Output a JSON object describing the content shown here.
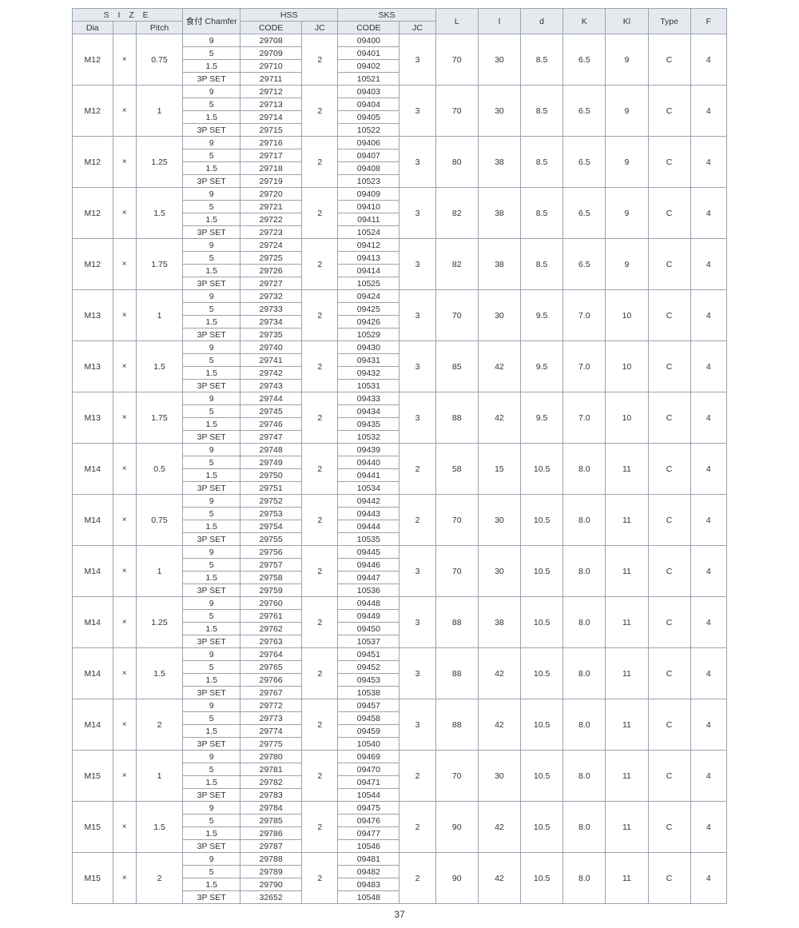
{
  "headers": {
    "size": "S I Z E",
    "dia": "Dia",
    "pitch": "Pitch",
    "chamfer": "食付 Chamfer",
    "hss": "HSS",
    "sks": "SKS",
    "code": "CODE",
    "jc": "JC",
    "L": "L",
    "l": "l",
    "d": "d",
    "K": "K",
    "Kl": "Kl",
    "Type": "Type",
    "F": "F"
  },
  "multiply": "×",
  "chamfers": [
    "9",
    "5",
    "1.5",
    "3P SET"
  ],
  "groups": [
    {
      "dia": "M12",
      "pitch": "0.75",
      "hss": [
        "29708",
        "29709",
        "29710",
        "29711"
      ],
      "hjc": "2",
      "sks": [
        "09400",
        "09401",
        "09402",
        "10521"
      ],
      "sjc": "3",
      "L": "70",
      "l": "30",
      "d": "8.5",
      "K": "6.5",
      "Kl": "9",
      "Type": "C",
      "F": "4"
    },
    {
      "dia": "M12",
      "pitch": "1",
      "hss": [
        "29712",
        "29713",
        "29714",
        "29715"
      ],
      "hjc": "2",
      "sks": [
        "09403",
        "09404",
        "09405",
        "10522"
      ],
      "sjc": "3",
      "L": "70",
      "l": "30",
      "d": "8.5",
      "K": "6.5",
      "Kl": "9",
      "Type": "C",
      "F": "4"
    },
    {
      "dia": "M12",
      "pitch": "1.25",
      "hss": [
        "29716",
        "29717",
        "29718",
        "29719"
      ],
      "hjc": "2",
      "sks": [
        "09406",
        "09407",
        "09408",
        "10523"
      ],
      "sjc": "3",
      "L": "80",
      "l": "38",
      "d": "8.5",
      "K": "6.5",
      "Kl": "9",
      "Type": "C",
      "F": "4"
    },
    {
      "dia": "M12",
      "pitch": "1.5",
      "hss": [
        "29720",
        "29721",
        "29722",
        "29723"
      ],
      "hjc": "2",
      "sks": [
        "09409",
        "09410",
        "09411",
        "10524"
      ],
      "sjc": "3",
      "L": "82",
      "l": "38",
      "d": "8.5",
      "K": "6.5",
      "Kl": "9",
      "Type": "C",
      "F": "4"
    },
    {
      "dia": "M12",
      "pitch": "1.75",
      "hss": [
        "29724",
        "29725",
        "29726",
        "29727"
      ],
      "hjc": "2",
      "sks": [
        "09412",
        "09413",
        "09414",
        "10525"
      ],
      "sjc": "3",
      "L": "82",
      "l": "38",
      "d": "8.5",
      "K": "6.5",
      "Kl": "9",
      "Type": "C",
      "F": "4"
    },
    {
      "dia": "M13",
      "pitch": "1",
      "hss": [
        "29732",
        "29733",
        "29734",
        "29735"
      ],
      "hjc": "2",
      "sks": [
        "09424",
        "09425",
        "09426",
        "10529"
      ],
      "sjc": "3",
      "L": "70",
      "l": "30",
      "d": "9.5",
      "K": "7.0",
      "Kl": "10",
      "Type": "C",
      "F": "4"
    },
    {
      "dia": "M13",
      "pitch": "1.5",
      "hss": [
        "29740",
        "29741",
        "29742",
        "29743"
      ],
      "hjc": "2",
      "sks": [
        "09430",
        "09431",
        "09432",
        "10531"
      ],
      "sjc": "3",
      "L": "85",
      "l": "42",
      "d": "9.5",
      "K": "7.0",
      "Kl": "10",
      "Type": "C",
      "F": "4"
    },
    {
      "dia": "M13",
      "pitch": "1.75",
      "hss": [
        "29744",
        "29745",
        "29746",
        "29747"
      ],
      "hjc": "2",
      "sks": [
        "09433",
        "09434",
        "09435",
        "10532"
      ],
      "sjc": "3",
      "L": "88",
      "l": "42",
      "d": "9.5",
      "K": "7.0",
      "Kl": "10",
      "Type": "C",
      "F": "4"
    },
    {
      "dia": "M14",
      "pitch": "0.5",
      "hss": [
        "29748",
        "29749",
        "29750",
        "29751"
      ],
      "hjc": "2",
      "sks": [
        "09439",
        "09440",
        "09441",
        "10534"
      ],
      "sjc": "2",
      "L": "58",
      "l": "15",
      "d": "10.5",
      "K": "8.0",
      "Kl": "11",
      "Type": "C",
      "F": "4"
    },
    {
      "dia": "M14",
      "pitch": "0.75",
      "hss": [
        "29752",
        "29753",
        "29754",
        "29755"
      ],
      "hjc": "2",
      "sks": [
        "09442",
        "09443",
        "09444",
        "10535"
      ],
      "sjc": "2",
      "L": "70",
      "l": "30",
      "d": "10.5",
      "K": "8.0",
      "Kl": "11",
      "Type": "C",
      "F": "4"
    },
    {
      "dia": "M14",
      "pitch": "1",
      "hss": [
        "29756",
        "29757",
        "29758",
        "29759"
      ],
      "hjc": "2",
      "sks": [
        "09445",
        "09446",
        "09447",
        "10536"
      ],
      "sjc": "3",
      "L": "70",
      "l": "30",
      "d": "10.5",
      "K": "8.0",
      "Kl": "11",
      "Type": "C",
      "F": "4"
    },
    {
      "dia": "M14",
      "pitch": "1.25",
      "hss": [
        "29760",
        "29761",
        "29762",
        "29763"
      ],
      "hjc": "2",
      "sks": [
        "09448",
        "09449",
        "09450",
        "10537"
      ],
      "sjc": "3",
      "L": "88",
      "l": "38",
      "d": "10.5",
      "K": "8.0",
      "Kl": "11",
      "Type": "C",
      "F": "4"
    },
    {
      "dia": "M14",
      "pitch": "1.5",
      "hss": [
        "29764",
        "29765",
        "29766",
        "29767"
      ],
      "hjc": "2",
      "sks": [
        "09451",
        "09452",
        "09453",
        "10538"
      ],
      "sjc": "3",
      "L": "88",
      "l": "42",
      "d": "10.5",
      "K": "8.0",
      "Kl": "11",
      "Type": "C",
      "F": "4"
    },
    {
      "dia": "M14",
      "pitch": "2",
      "hss": [
        "29772",
        "29773",
        "29774",
        "29775"
      ],
      "hjc": "2",
      "sks": [
        "09457",
        "09458",
        "09459",
        "10540"
      ],
      "sjc": "3",
      "L": "88",
      "l": "42",
      "d": "10.5",
      "K": "8.0",
      "Kl": "11",
      "Type": "C",
      "F": "4"
    },
    {
      "dia": "M15",
      "pitch": "1",
      "hss": [
        "29780",
        "29781",
        "29782",
        "29783"
      ],
      "hjc": "2",
      "sks": [
        "09469",
        "09470",
        "09471",
        "10544"
      ],
      "sjc": "2",
      "L": "70",
      "l": "30",
      "d": "10.5",
      "K": "8.0",
      "Kl": "11",
      "Type": "C",
      "F": "4"
    },
    {
      "dia": "M15",
      "pitch": "1.5",
      "hss": [
        "29784",
        "29785",
        "29786",
        "29787"
      ],
      "hjc": "2",
      "sks": [
        "09475",
        "09476",
        "09477",
        "10546"
      ],
      "sjc": "2",
      "L": "90",
      "l": "42",
      "d": "10.5",
      "K": "8.0",
      "Kl": "11",
      "Type": "C",
      "F": "4"
    },
    {
      "dia": "M15",
      "pitch": "2",
      "hss": [
        "29788",
        "29789",
        "29790",
        "32652"
      ],
      "hjc": "2",
      "sks": [
        "09481",
        "09482",
        "09483",
        "10548"
      ],
      "sjc": "2",
      "L": "90",
      "l": "42",
      "d": "10.5",
      "K": "8.0",
      "Kl": "11",
      "Type": "C",
      "F": "4"
    }
  ],
  "page": "37"
}
